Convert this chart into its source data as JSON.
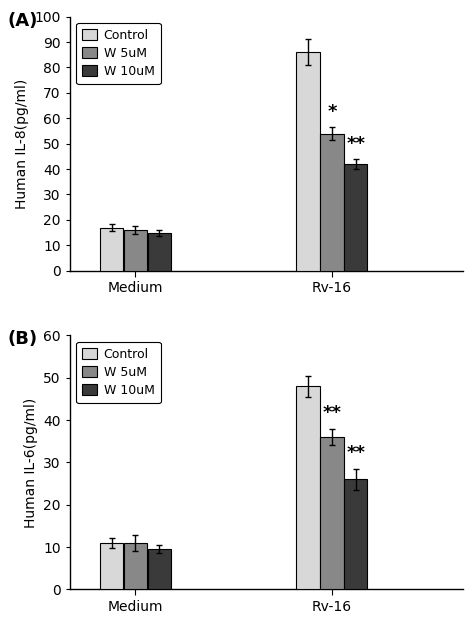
{
  "panel_A": {
    "label": "(A)",
    "ylabel": "Human IL-8(pg/ml)",
    "ylim": [
      0,
      100
    ],
    "yticks": [
      0,
      10,
      20,
      30,
      40,
      50,
      60,
      70,
      80,
      90,
      100
    ],
    "groups": [
      "Medium",
      "Rv-16"
    ],
    "series": [
      "Control",
      "W 5uM",
      "W 10uM"
    ],
    "values": [
      [
        17,
        16,
        15
      ],
      [
        86,
        54,
        42
      ]
    ],
    "errors": [
      [
        1.5,
        1.5,
        1.2
      ],
      [
        5.0,
        2.5,
        2.0
      ]
    ],
    "annotations": [
      {
        "group": 1,
        "series": 1,
        "text": "*",
        "fontsize": 13
      },
      {
        "group": 1,
        "series": 2,
        "text": "**",
        "fontsize": 13
      }
    ]
  },
  "panel_B": {
    "label": "(B)",
    "ylabel": "Human IL-6(pg/ml)",
    "ylim": [
      0,
      60
    ],
    "yticks": [
      0,
      10,
      20,
      30,
      40,
      50,
      60
    ],
    "groups": [
      "Medium",
      "Rv-16"
    ],
    "series": [
      "Control",
      "W 5uM",
      "W 10uM"
    ],
    "values": [
      [
        11,
        11,
        9.5
      ],
      [
        48,
        36,
        26
      ]
    ],
    "errors": [
      [
        1.2,
        1.8,
        1.0
      ],
      [
        2.5,
        2.0,
        2.5
      ]
    ],
    "annotations": [
      {
        "group": 1,
        "series": 1,
        "text": "**",
        "fontsize": 13
      },
      {
        "group": 1,
        "series": 2,
        "text": "**",
        "fontsize": 13
      }
    ]
  },
  "colors": [
    "#d8d8d8",
    "#888888",
    "#3a3a3a"
  ],
  "bar_width": 0.2,
  "group_centers": [
    0.85,
    2.5
  ],
  "xlim": [
    0.3,
    3.6
  ],
  "legend_labels": [
    "Control",
    "W 5uM",
    "W 10uM"
  ],
  "edgecolor": "#000000",
  "background_color": "#ffffff"
}
